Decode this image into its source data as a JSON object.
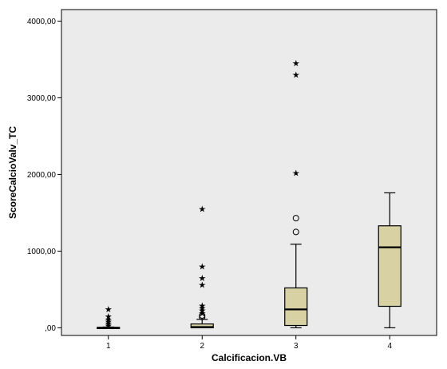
{
  "chart_data": {
    "type": "boxplot",
    "title": "",
    "xlabel": "Calcificacion.VB",
    "ylabel": "ScoreCalcioValv_TC",
    "ylim": [
      -100,
      4150
    ],
    "yticks": [
      0,
      1000,
      2000,
      3000,
      4000
    ],
    "ytick_labels": [
      ",00",
      "1000,00",
      "2000,00",
      "3000,00",
      "4000,00"
    ],
    "categories": [
      "1",
      "2",
      "3",
      "4"
    ],
    "colors": {
      "plot_bg": "#ebebeb",
      "box_fill": "#d7d1a3",
      "stroke": "#000000"
    },
    "boxes": [
      {
        "category": "1",
        "min": 0,
        "q1": 0,
        "median": 0,
        "q3": 5,
        "max": 10,
        "outliers_circle": [],
        "outliers_star": [
          30,
          55,
          80,
          110,
          150,
          245
        ]
      },
      {
        "category": "2",
        "min": 0,
        "q1": 0,
        "median": 10,
        "q3": 50,
        "max": 110,
        "outliers_circle": [
          140,
          160
        ],
        "outliers_star": [
          190,
          230,
          260,
          290,
          560,
          650,
          800,
          1550
        ]
      },
      {
        "category": "3",
        "min": 0,
        "q1": 30,
        "median": 240,
        "q3": 520,
        "max": 1090,
        "outliers_circle": [
          1250,
          1430
        ],
        "outliers_star": [
          2020,
          3300,
          3450
        ]
      },
      {
        "category": "4",
        "min": 0,
        "q1": 280,
        "median": 1050,
        "q3": 1330,
        "max": 1760,
        "outliers_circle": [],
        "outliers_star": []
      }
    ]
  }
}
